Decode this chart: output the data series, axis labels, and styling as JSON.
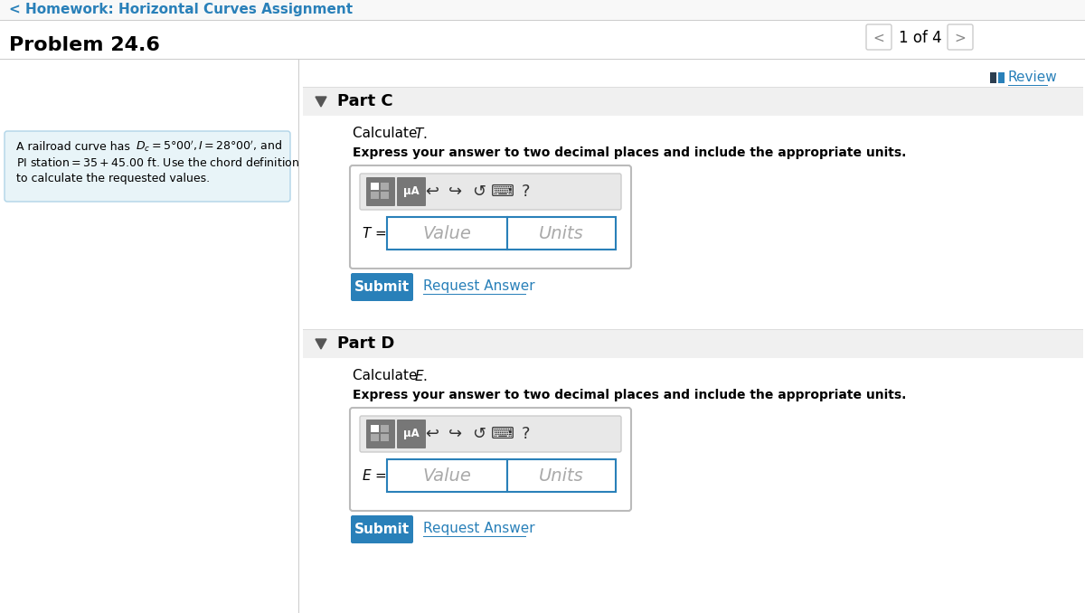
{
  "bg_color": "#ffffff",
  "header_link_color": "#2980b9",
  "header_link_text": "< Homework: Horizontal Curves Assignment",
  "problem_title": "Problem 24.6",
  "nav_text": "1 of 4",
  "problem_box_bg": "#e8f4f8",
  "problem_box_border": "#b0d4e8",
  "review_text": "Review",
  "part_c_header": "Part C",
  "part_c_header_bg": "#f0f0f0",
  "part_c_instruction": "Express your answer to two decimal places and include the appropriate units.",
  "part_d_header": "Part D",
  "part_d_header_bg": "#f0f0f0",
  "part_d_instruction": "Express your answer to two decimal places and include the appropriate units.",
  "input_border_color": "#2980b9",
  "value_placeholder": "Value",
  "units_placeholder": "Units",
  "submit_bg": "#2980b9",
  "submit_text_color": "#ffffff",
  "submit_text": "Submit",
  "request_answer_text": "Request Answer",
  "request_answer_color": "#2980b9",
  "divider_color": "#cccccc",
  "toolbar_btn_color": "#777777",
  "toolbar_bg": "#e8e8e8",
  "icon_color": "#333333",
  "mu_a_text": "μA"
}
